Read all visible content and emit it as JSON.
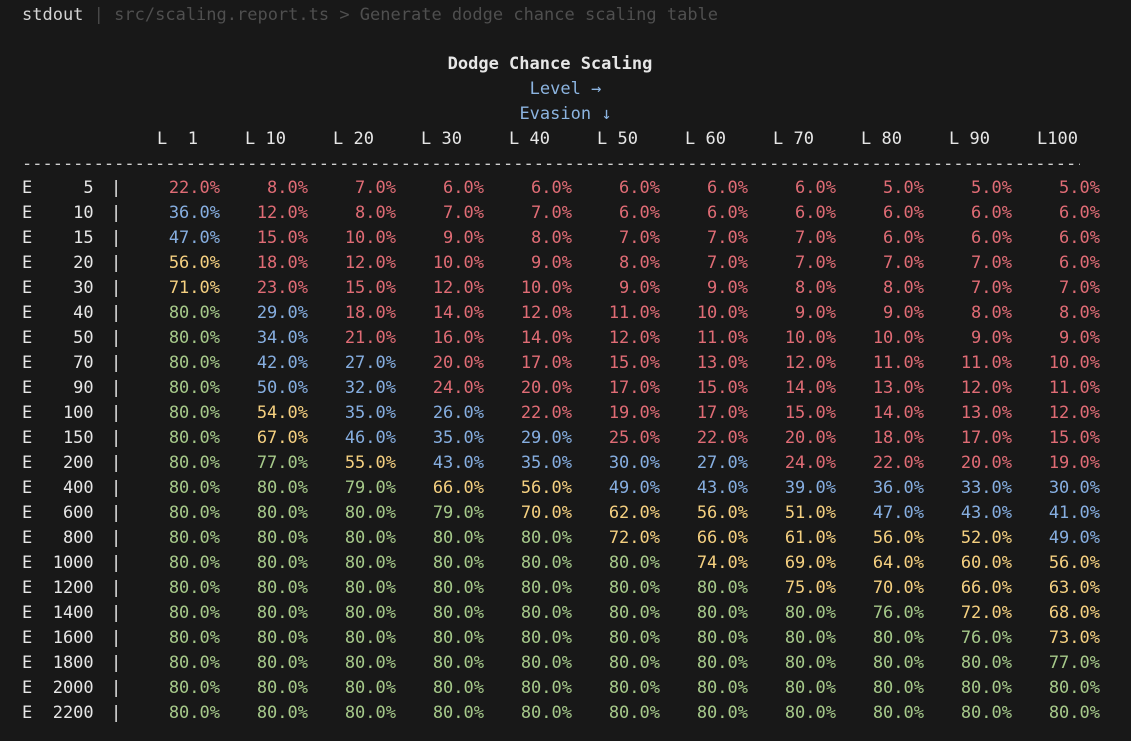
{
  "topbar": {
    "label": "stdout",
    "separator": "|",
    "path": "src/scaling.report.ts > Generate dodge chance scaling table"
  },
  "table": {
    "title": "Dodge Chance Scaling",
    "column_axis_label": "Level →",
    "row_axis_label": "Evasion ↓",
    "rule": "---------------------------------------------------------------------------------------------------------------------------",
    "column_headers": [
      "L  1",
      "L 10",
      "L 20",
      "L 30",
      "L 40",
      "L 50",
      "L 60",
      "L 70",
      "L 80",
      "L 90",
      "L100"
    ],
    "rows": [
      {
        "label": "E    5",
        "values": [
          "22.0%",
          "8.0%",
          "7.0%",
          "6.0%",
          "6.0%",
          "6.0%",
          "6.0%",
          "6.0%",
          "5.0%",
          "5.0%",
          "5.0%"
        ],
        "colors": [
          "red",
          "red",
          "red",
          "red",
          "red",
          "red",
          "red",
          "red",
          "red",
          "red",
          "red"
        ]
      },
      {
        "label": "E   10",
        "values": [
          "36.0%",
          "12.0%",
          "8.0%",
          "7.0%",
          "7.0%",
          "6.0%",
          "6.0%",
          "6.0%",
          "6.0%",
          "6.0%",
          "6.0%"
        ],
        "colors": [
          "blue",
          "red",
          "red",
          "red",
          "red",
          "red",
          "red",
          "red",
          "red",
          "red",
          "red"
        ]
      },
      {
        "label": "E   15",
        "values": [
          "47.0%",
          "15.0%",
          "10.0%",
          "9.0%",
          "8.0%",
          "7.0%",
          "7.0%",
          "7.0%",
          "6.0%",
          "6.0%",
          "6.0%"
        ],
        "colors": [
          "blue",
          "red",
          "red",
          "red",
          "red",
          "red",
          "red",
          "red",
          "red",
          "red",
          "red"
        ]
      },
      {
        "label": "E   20",
        "values": [
          "56.0%",
          "18.0%",
          "12.0%",
          "10.0%",
          "9.0%",
          "8.0%",
          "7.0%",
          "7.0%",
          "7.0%",
          "7.0%",
          "6.0%"
        ],
        "colors": [
          "yellow",
          "red",
          "red",
          "red",
          "red",
          "red",
          "red",
          "red",
          "red",
          "red",
          "red"
        ]
      },
      {
        "label": "E   30",
        "values": [
          "71.0%",
          "23.0%",
          "15.0%",
          "12.0%",
          "10.0%",
          "9.0%",
          "9.0%",
          "8.0%",
          "8.0%",
          "7.0%",
          "7.0%"
        ],
        "colors": [
          "yellow",
          "red",
          "red",
          "red",
          "red",
          "red",
          "red",
          "red",
          "red",
          "red",
          "red"
        ]
      },
      {
        "label": "E   40",
        "values": [
          "80.0%",
          "29.0%",
          "18.0%",
          "14.0%",
          "12.0%",
          "11.0%",
          "10.0%",
          "9.0%",
          "9.0%",
          "8.0%",
          "8.0%"
        ],
        "colors": [
          "green",
          "blue",
          "red",
          "red",
          "red",
          "red",
          "red",
          "red",
          "red",
          "red",
          "red"
        ]
      },
      {
        "label": "E   50",
        "values": [
          "80.0%",
          "34.0%",
          "21.0%",
          "16.0%",
          "14.0%",
          "12.0%",
          "11.0%",
          "10.0%",
          "10.0%",
          "9.0%",
          "9.0%"
        ],
        "colors": [
          "green",
          "blue",
          "red",
          "red",
          "red",
          "red",
          "red",
          "red",
          "red",
          "red",
          "red"
        ]
      },
      {
        "label": "E   70",
        "values": [
          "80.0%",
          "42.0%",
          "27.0%",
          "20.0%",
          "17.0%",
          "15.0%",
          "13.0%",
          "12.0%",
          "11.0%",
          "11.0%",
          "10.0%"
        ],
        "colors": [
          "green",
          "blue",
          "blue",
          "red",
          "red",
          "red",
          "red",
          "red",
          "red",
          "red",
          "red"
        ]
      },
      {
        "label": "E   90",
        "values": [
          "80.0%",
          "50.0%",
          "32.0%",
          "24.0%",
          "20.0%",
          "17.0%",
          "15.0%",
          "14.0%",
          "13.0%",
          "12.0%",
          "11.0%"
        ],
        "colors": [
          "green",
          "blue",
          "blue",
          "red",
          "red",
          "red",
          "red",
          "red",
          "red",
          "red",
          "red"
        ]
      },
      {
        "label": "E  100",
        "values": [
          "80.0%",
          "54.0%",
          "35.0%",
          "26.0%",
          "22.0%",
          "19.0%",
          "17.0%",
          "15.0%",
          "14.0%",
          "13.0%",
          "12.0%"
        ],
        "colors": [
          "green",
          "yellow",
          "blue",
          "blue",
          "red",
          "red",
          "red",
          "red",
          "red",
          "red",
          "red"
        ]
      },
      {
        "label": "E  150",
        "values": [
          "80.0%",
          "67.0%",
          "46.0%",
          "35.0%",
          "29.0%",
          "25.0%",
          "22.0%",
          "20.0%",
          "18.0%",
          "17.0%",
          "15.0%"
        ],
        "colors": [
          "green",
          "yellow",
          "blue",
          "blue",
          "blue",
          "red",
          "red",
          "red",
          "red",
          "red",
          "red"
        ]
      },
      {
        "label": "E  200",
        "values": [
          "80.0%",
          "77.0%",
          "55.0%",
          "43.0%",
          "35.0%",
          "30.0%",
          "27.0%",
          "24.0%",
          "22.0%",
          "20.0%",
          "19.0%"
        ],
        "colors": [
          "green",
          "green",
          "yellow",
          "blue",
          "blue",
          "blue",
          "blue",
          "red",
          "red",
          "red",
          "red"
        ]
      },
      {
        "label": "E  400",
        "values": [
          "80.0%",
          "80.0%",
          "79.0%",
          "66.0%",
          "56.0%",
          "49.0%",
          "43.0%",
          "39.0%",
          "36.0%",
          "33.0%",
          "30.0%"
        ],
        "colors": [
          "green",
          "green",
          "green",
          "yellow",
          "yellow",
          "blue",
          "blue",
          "blue",
          "blue",
          "blue",
          "blue"
        ]
      },
      {
        "label": "E  600",
        "values": [
          "80.0%",
          "80.0%",
          "80.0%",
          "79.0%",
          "70.0%",
          "62.0%",
          "56.0%",
          "51.0%",
          "47.0%",
          "43.0%",
          "41.0%"
        ],
        "colors": [
          "green",
          "green",
          "green",
          "green",
          "yellow",
          "yellow",
          "yellow",
          "yellow",
          "blue",
          "blue",
          "blue"
        ]
      },
      {
        "label": "E  800",
        "values": [
          "80.0%",
          "80.0%",
          "80.0%",
          "80.0%",
          "80.0%",
          "72.0%",
          "66.0%",
          "61.0%",
          "56.0%",
          "52.0%",
          "49.0%"
        ],
        "colors": [
          "green",
          "green",
          "green",
          "green",
          "green",
          "yellow",
          "yellow",
          "yellow",
          "yellow",
          "yellow",
          "blue"
        ]
      },
      {
        "label": "E 1000",
        "values": [
          "80.0%",
          "80.0%",
          "80.0%",
          "80.0%",
          "80.0%",
          "80.0%",
          "74.0%",
          "69.0%",
          "64.0%",
          "60.0%",
          "56.0%"
        ],
        "colors": [
          "green",
          "green",
          "green",
          "green",
          "green",
          "green",
          "yellow",
          "yellow",
          "yellow",
          "yellow",
          "yellow"
        ]
      },
      {
        "label": "E 1200",
        "values": [
          "80.0%",
          "80.0%",
          "80.0%",
          "80.0%",
          "80.0%",
          "80.0%",
          "80.0%",
          "75.0%",
          "70.0%",
          "66.0%",
          "63.0%"
        ],
        "colors": [
          "green",
          "green",
          "green",
          "green",
          "green",
          "green",
          "green",
          "yellow",
          "yellow",
          "yellow",
          "yellow"
        ]
      },
      {
        "label": "E 1400",
        "values": [
          "80.0%",
          "80.0%",
          "80.0%",
          "80.0%",
          "80.0%",
          "80.0%",
          "80.0%",
          "80.0%",
          "76.0%",
          "72.0%",
          "68.0%"
        ],
        "colors": [
          "green",
          "green",
          "green",
          "green",
          "green",
          "green",
          "green",
          "green",
          "green",
          "yellow",
          "yellow"
        ]
      },
      {
        "label": "E 1600",
        "values": [
          "80.0%",
          "80.0%",
          "80.0%",
          "80.0%",
          "80.0%",
          "80.0%",
          "80.0%",
          "80.0%",
          "80.0%",
          "76.0%",
          "73.0%"
        ],
        "colors": [
          "green",
          "green",
          "green",
          "green",
          "green",
          "green",
          "green",
          "green",
          "green",
          "green",
          "yellow"
        ]
      },
      {
        "label": "E 1800",
        "values": [
          "80.0%",
          "80.0%",
          "80.0%",
          "80.0%",
          "80.0%",
          "80.0%",
          "80.0%",
          "80.0%",
          "80.0%",
          "80.0%",
          "77.0%"
        ],
        "colors": [
          "green",
          "green",
          "green",
          "green",
          "green",
          "green",
          "green",
          "green",
          "green",
          "green",
          "green"
        ]
      },
      {
        "label": "E 2000",
        "values": [
          "80.0%",
          "80.0%",
          "80.0%",
          "80.0%",
          "80.0%",
          "80.0%",
          "80.0%",
          "80.0%",
          "80.0%",
          "80.0%",
          "80.0%"
        ],
        "colors": [
          "green",
          "green",
          "green",
          "green",
          "green",
          "green",
          "green",
          "green",
          "green",
          "green",
          "green"
        ]
      },
      {
        "label": "E 2200",
        "values": [
          "80.0%",
          "80.0%",
          "80.0%",
          "80.0%",
          "80.0%",
          "80.0%",
          "80.0%",
          "80.0%",
          "80.0%",
          "80.0%",
          "80.0%"
        ],
        "colors": [
          "green",
          "green",
          "green",
          "green",
          "green",
          "green",
          "green",
          "green",
          "green",
          "green",
          "green"
        ]
      }
    ]
  },
  "colors": {
    "background": "#181818",
    "red": "#e06c75",
    "blue": "#86aee0",
    "yellow": "#f5d080",
    "green": "#a6c98a"
  }
}
